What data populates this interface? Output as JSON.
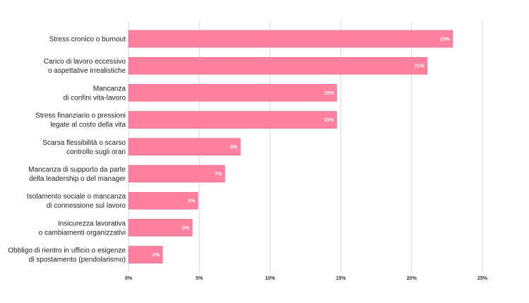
{
  "chart_data": {
    "type": "bar",
    "orientation": "horizontal",
    "categories": [
      [
        "Stress cronico o burnout"
      ],
      [
        "Carico di lavoro eccessivo",
        "o aspettative irrealistiche"
      ],
      [
        "Mancanza",
        "di confini vita-lavoro"
      ],
      [
        "Stress finanziario o pressioni",
        "legate al costo della vita"
      ],
      [
        "Scarsa flessibilità o scarso",
        "controllo sugli orari"
      ],
      [
        "Mancanza di supporto da parte",
        "della leadership o del manager"
      ],
      [
        "Isolamento sociale o mancanza",
        "di connessione sul lavoro"
      ],
      [
        "Insicurezza lavorativa",
        "o cambiamenti organizzativi"
      ],
      [
        "Obbligo di rientro in ufficio o esigenze",
        "di spostamento (pendolarismo)"
      ]
    ],
    "values": [
      22.9,
      21.1,
      14.7,
      14.7,
      7.9,
      6.8,
      4.9,
      4.5,
      2.4
    ],
    "data_labels": [
      "23%",
      "21%",
      "15%",
      "15%",
      "8%",
      "7%",
      "5%",
      "5%",
      "2%"
    ],
    "xlim": [
      0,
      25
    ],
    "xticks": [
      0,
      5,
      10,
      15,
      20,
      25
    ],
    "xtick_labels": [
      "0%",
      "5%",
      "10%",
      "15%",
      "20%",
      "25%"
    ],
    "title": "",
    "xlabel": "",
    "ylabel": "",
    "grid": true,
    "bar_color": "#ff809f",
    "bar_edge_color": "#e8637f"
  }
}
